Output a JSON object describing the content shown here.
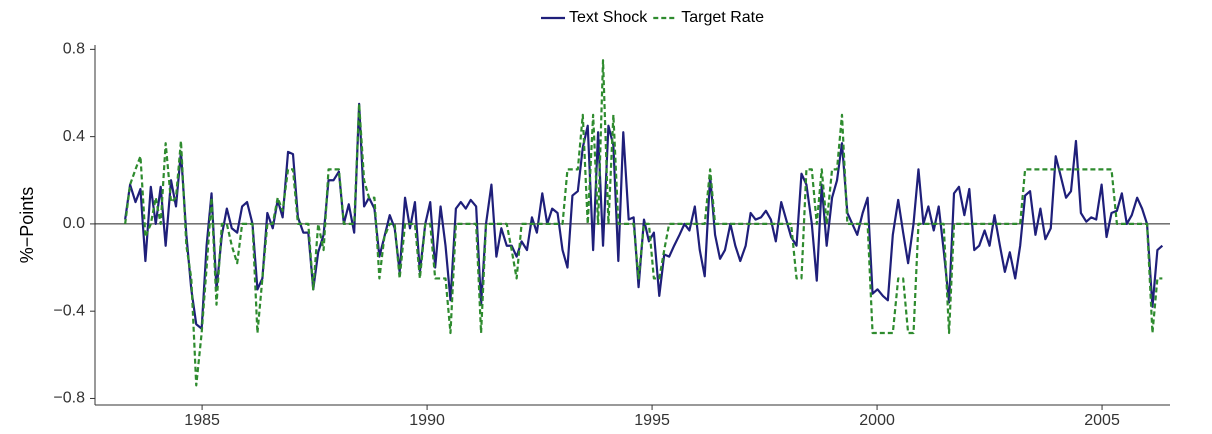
{
  "chart_data": {
    "type": "line",
    "ylabel": "%−Points",
    "x": [
      1983.29,
      1983.4,
      1983.52,
      1983.63,
      1983.74,
      1983.86,
      1983.97,
      1984.08,
      1984.19,
      1984.31,
      1984.42,
      1984.53,
      1984.65,
      1984.76,
      1984.87,
      1984.99,
      1985.1,
      1985.21,
      1985.32,
      1985.44,
      1985.55,
      1985.66,
      1985.78,
      1985.89,
      1986.0,
      1986.12,
      1986.23,
      1986.34,
      1986.45,
      1986.57,
      1986.68,
      1986.79,
      1986.91,
      1987.02,
      1987.13,
      1987.25,
      1987.36,
      1987.47,
      1987.58,
      1987.7,
      1987.81,
      1987.92,
      1988.04,
      1988.15,
      1988.26,
      1988.38,
      1988.49,
      1988.6,
      1988.71,
      1988.83,
      1988.94,
      1989.05,
      1989.17,
      1989.28,
      1989.39,
      1989.51,
      1989.62,
      1989.73,
      1989.84,
      1989.96,
      1990.07,
      1990.18,
      1990.3,
      1990.41,
      1990.52,
      1990.64,
      1990.75,
      1990.86,
      1990.97,
      1991.09,
      1991.2,
      1991.31,
      1991.43,
      1991.54,
      1991.65,
      1991.77,
      1991.88,
      1991.99,
      1992.1,
      1992.22,
      1992.33,
      1992.44,
      1992.56,
      1992.67,
      1992.78,
      1992.9,
      1993.01,
      1993.12,
      1993.23,
      1993.35,
      1993.46,
      1993.57,
      1993.69,
      1993.8,
      1993.91,
      1994.03,
      1994.14,
      1994.25,
      1994.36,
      1994.48,
      1994.59,
      1994.7,
      1994.82,
      1994.93,
      1995.04,
      1995.16,
      1995.27,
      1995.38,
      1995.49,
      1995.61,
      1995.72,
      1995.83,
      1995.95,
      1996.06,
      1996.17,
      1996.29,
      1996.4,
      1996.51,
      1996.62,
      1996.74,
      1996.85,
      1996.96,
      1997.08,
      1997.19,
      1997.3,
      1997.42,
      1997.53,
      1997.64,
      1997.75,
      1997.87,
      1997.98,
      1998.09,
      1998.21,
      1998.32,
      1998.43,
      1998.55,
      1998.66,
      1998.77,
      1998.88,
      1999.0,
      1999.11,
      1999.22,
      1999.34,
      1999.45,
      1999.56,
      1999.68,
      1999.79,
      1999.9,
      2000.01,
      2000.13,
      2000.24,
      2000.35,
      2000.47,
      2000.58,
      2000.69,
      2000.81,
      2000.92,
      2001.03,
      2001.14,
      2001.26,
      2001.37,
      2001.48,
      2001.6,
      2001.71,
      2001.82,
      2001.94,
      2002.05,
      2002.16,
      2002.27,
      2002.39,
      2002.5,
      2002.61,
      2002.73,
      2002.84,
      2002.95,
      2003.07,
      2003.18,
      2003.29,
      2003.4,
      2003.52,
      2003.63,
      2003.74,
      2003.86,
      2003.97,
      2004.08,
      2004.2,
      2004.31,
      2004.42,
      2004.53,
      2004.65,
      2004.76,
      2004.87,
      2004.99,
      2005.1,
      2005.21,
      2005.33,
      2005.44,
      2005.55,
      2005.66,
      2005.78,
      2005.89,
      2006.0,
      2006.12,
      2006.23,
      2006.34
    ],
    "series": [
      {
        "name": "Text Shock",
        "color": "#1f1f7a",
        "dash": "solid",
        "values": [
          0.02,
          0.18,
          0.1,
          0.16,
          -0.17,
          0.17,
          0.0,
          0.17,
          -0.1,
          0.2,
          0.08,
          0.33,
          -0.05,
          -0.3,
          -0.46,
          -0.48,
          -0.1,
          0.14,
          -0.3,
          -0.05,
          0.07,
          -0.02,
          -0.04,
          0.08,
          0.1,
          0.0,
          -0.3,
          -0.25,
          0.05,
          -0.02,
          0.11,
          0.03,
          0.33,
          0.32,
          0.03,
          -0.04,
          -0.04,
          -0.3,
          -0.13,
          -0.05,
          0.2,
          0.2,
          0.24,
          0.0,
          0.09,
          -0.04,
          0.55,
          0.08,
          0.12,
          0.07,
          -0.15,
          -0.06,
          0.04,
          -0.02,
          -0.22,
          0.12,
          -0.02,
          0.1,
          -0.22,
          0.0,
          0.1,
          -0.2,
          0.08,
          -0.1,
          -0.35,
          0.07,
          0.1,
          0.07,
          0.11,
          0.08,
          -0.37,
          0.0,
          0.18,
          -0.15,
          -0.02,
          -0.1,
          -0.1,
          -0.15,
          -0.08,
          -0.12,
          0.03,
          -0.04,
          0.14,
          0.0,
          0.07,
          0.05,
          -0.12,
          -0.2,
          0.13,
          0.15,
          0.35,
          0.45,
          -0.12,
          0.42,
          -0.1,
          0.45,
          0.36,
          -0.17,
          0.42,
          0.02,
          0.03,
          -0.29,
          0.02,
          -0.08,
          -0.04,
          -0.33,
          -0.14,
          -0.15,
          -0.1,
          -0.05,
          0.0,
          -0.03,
          0.08,
          -0.12,
          -0.24,
          0.22,
          -0.05,
          -0.16,
          -0.12,
          0.0,
          -0.1,
          -0.17,
          -0.1,
          0.05,
          0.02,
          0.03,
          0.06,
          0.02,
          -0.08,
          0.1,
          0.02,
          -0.06,
          -0.1,
          0.23,
          0.18,
          0.0,
          -0.26,
          0.18,
          -0.1,
          0.12,
          0.2,
          0.37,
          0.05,
          0.0,
          -0.05,
          0.05,
          0.12,
          -0.32,
          -0.3,
          -0.33,
          -0.35,
          -0.05,
          0.11,
          -0.04,
          -0.18,
          0.0,
          0.25,
          0.0,
          0.08,
          -0.03,
          0.08,
          -0.12,
          -0.36,
          0.14,
          0.17,
          0.04,
          0.16,
          -0.12,
          -0.1,
          -0.03,
          -0.1,
          0.04,
          -0.1,
          -0.22,
          -0.13,
          -0.25,
          -0.1,
          0.13,
          0.15,
          -0.05,
          0.07,
          -0.07,
          -0.02,
          0.31,
          0.22,
          0.12,
          0.15,
          0.38,
          0.05,
          0.01,
          0.03,
          0.02,
          0.18,
          -0.06,
          0.05,
          0.06,
          0.14,
          0.0,
          0.04,
          0.12,
          0.07,
          0.0,
          -0.38,
          -0.12,
          -0.1
        ]
      },
      {
        "name": "Target Rate",
        "color": "#2e8b2e",
        "dash": "dashed",
        "values": [
          0.0,
          0.18,
          0.25,
          0.31,
          -0.06,
          0.0,
          0.12,
          0.0,
          0.37,
          0.1,
          0.12,
          0.38,
          -0.1,
          -0.25,
          -0.74,
          -0.5,
          -0.2,
          0.12,
          -0.37,
          0.0,
          0.0,
          -0.1,
          -0.18,
          0.0,
          0.0,
          0.0,
          -0.5,
          -0.25,
          0.0,
          0.0,
          0.12,
          0.06,
          0.25,
          0.25,
          0.0,
          0.0,
          0.0,
          -0.3,
          0.0,
          -0.12,
          0.25,
          0.25,
          0.25,
          0.0,
          0.0,
          0.0,
          0.55,
          0.2,
          0.12,
          0.12,
          -0.25,
          -0.06,
          0.0,
          0.0,
          -0.25,
          0.0,
          0.0,
          0.0,
          -0.25,
          0.0,
          0.0,
          -0.25,
          -0.25,
          -0.25,
          -0.5,
          0.0,
          0.0,
          0.0,
          0.0,
          0.0,
          -0.5,
          0.0,
          0.0,
          0.0,
          0.0,
          0.0,
          -0.12,
          -0.25,
          0.0,
          0.0,
          0.0,
          0.0,
          0.0,
          0.0,
          0.0,
          0.0,
          0.0,
          0.25,
          0.25,
          0.25,
          0.5,
          0.0,
          0.5,
          0.0,
          0.75,
          0.0,
          0.5,
          0.0,
          0.0,
          0.0,
          0.0,
          -0.25,
          0.0,
          0.0,
          -0.25,
          -0.25,
          -0.12,
          0.0,
          0.0,
          0.0,
          0.0,
          0.0,
          0.0,
          0.0,
          0.0,
          0.25,
          0.0,
          0.0,
          0.0,
          0.0,
          0.0,
          0.0,
          0.0,
          0.0,
          0.0,
          0.0,
          0.0,
          0.0,
          0.0,
          0.0,
          0.0,
          0.0,
          -0.25,
          -0.25,
          0.25,
          0.25,
          0.0,
          0.25,
          0.0,
          0.25,
          0.25,
          0.5,
          0.0,
          0.0,
          0.0,
          0.0,
          0.0,
          -0.5,
          -0.5,
          -0.5,
          -0.5,
          -0.5,
          -0.25,
          -0.25,
          -0.5,
          -0.5,
          0.0,
          0.0,
          0.0,
          0.0,
          0.0,
          0.0,
          -0.5,
          0.0,
          0.0,
          0.0,
          0.0,
          0.0,
          0.0,
          0.0,
          0.0,
          0.0,
          0.0,
          0.0,
          0.0,
          0.0,
          0.0,
          0.25,
          0.25,
          0.25,
          0.25,
          0.25,
          0.25,
          0.25,
          0.25,
          0.25,
          0.25,
          0.25,
          0.25,
          0.25,
          0.25,
          0.25,
          0.25,
          0.25,
          0.25,
          0.0,
          0.0,
          0.0,
          0.0,
          0.0,
          0.0,
          0.0,
          -0.5,
          -0.25,
          -0.25
        ]
      }
    ],
    "xlim": [
      1982.62,
      2006.51
    ],
    "xticks": [
      1985,
      1990,
      1995,
      2000,
      2005
    ],
    "ylim": [
      -0.83,
      0.82
    ],
    "yticks": [
      {
        "value": -0.8,
        "label": "−0.8"
      },
      {
        "value": -0.4,
        "label": "−0.4"
      },
      {
        "value": 0,
        "label": "0.0"
      },
      0.4,
      0.8
    ],
    "reference_line": 0,
    "legend": "top"
  }
}
